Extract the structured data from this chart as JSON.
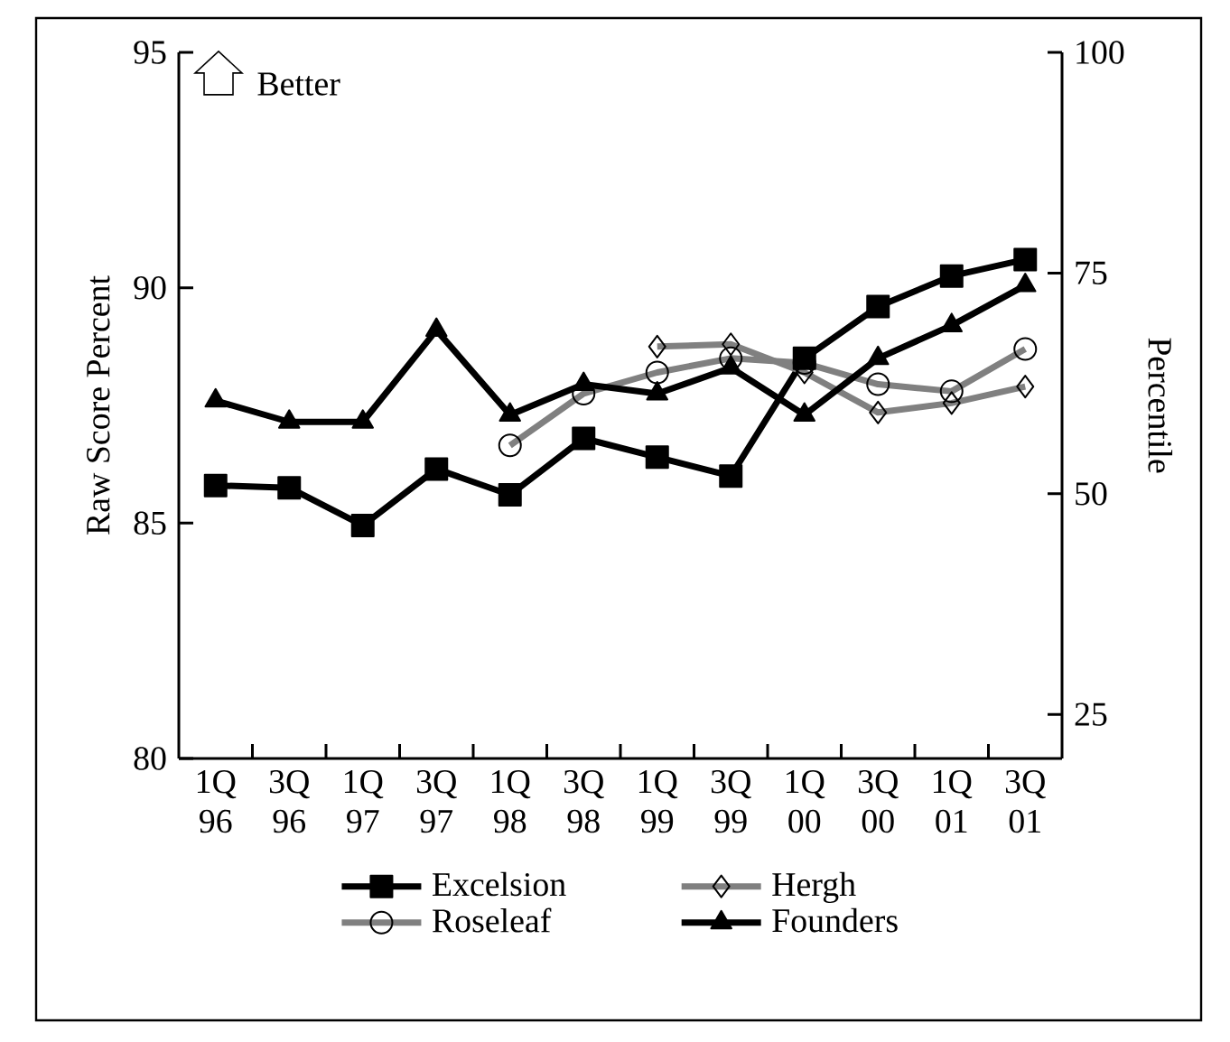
{
  "chart_data": {
    "type": "line",
    "categories": [
      "1Q 96",
      "3Q 96",
      "1Q 97",
      "3Q 97",
      "1Q 98",
      "3Q 98",
      "1Q 99",
      "3Q 99",
      "1Q 00",
      "3Q 00",
      "1Q 01",
      "3Q 01"
    ],
    "ylabel": "Raw Score Percent",
    "y2label": "Percentile",
    "ylim": [
      80,
      95
    ],
    "yticks": [
      80,
      85,
      90,
      95
    ],
    "y2lim": [
      20,
      100
    ],
    "y2ticks": [
      25,
      50,
      75,
      100
    ],
    "annotations": [
      "Better"
    ],
    "legend": "bottom",
    "grid": false,
    "series": [
      {
        "name": "Excelsion",
        "color": "#000000",
        "marker": "square",
        "values": [
          85.8,
          85.75,
          84.95,
          86.15,
          85.6,
          86.8,
          86.4,
          86.0,
          88.5,
          89.6,
          90.25,
          90.6
        ]
      },
      {
        "name": "Hergh",
        "color": "#808080",
        "marker": "diamond",
        "values": [
          null,
          null,
          null,
          null,
          null,
          null,
          88.75,
          88.8,
          88.2,
          87.35,
          87.55,
          87.9
        ]
      },
      {
        "name": "Roseleaf",
        "color": "#808080",
        "marker": "circle",
        "values": [
          null,
          null,
          null,
          null,
          86.65,
          87.75,
          88.2,
          88.5,
          88.4,
          87.95,
          87.8,
          88.7
        ]
      },
      {
        "name": "Founders",
        "color": "#000000",
        "marker": "triangle",
        "values": [
          87.6,
          87.15,
          87.15,
          89.1,
          87.3,
          87.95,
          87.75,
          88.3,
          87.3,
          88.5,
          89.2,
          90.05
        ]
      }
    ]
  }
}
